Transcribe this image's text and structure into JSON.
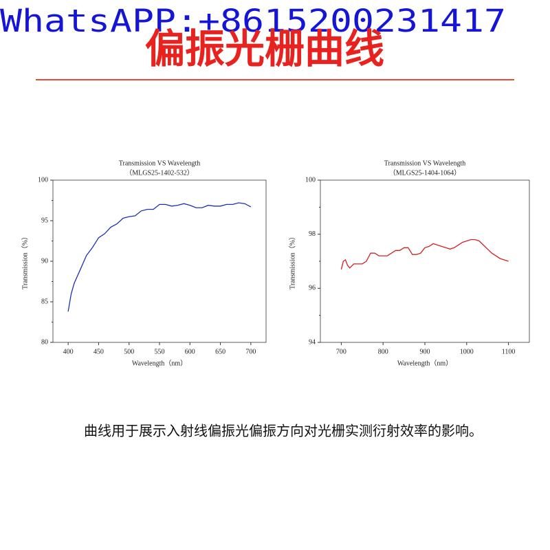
{
  "header": {
    "contact": "WhatsAPP:+8615200231417",
    "title": "偏振光栅曲线"
  },
  "caption": "曲线用于展示入射线偏振光偏振方向对光栅实测衍射效率的影响。",
  "chart_data": [
    {
      "type": "line",
      "title": "Transmission VS Wavelength",
      "subtitle": "（MLGS25-1402-532）",
      "x_label": "Wavelength（nm）",
      "y_label": "Transmission（%）",
      "color": "#1f2fb0",
      "x": [
        400,
        405,
        410,
        420,
        430,
        440,
        450,
        460,
        470,
        480,
        490,
        500,
        510,
        520,
        530,
        540,
        550,
        560,
        570,
        580,
        590,
        600,
        610,
        620,
        630,
        640,
        650,
        660,
        670,
        680,
        690,
        700
      ],
      "values": [
        83.8,
        86,
        87.3,
        89,
        90.7,
        91.7,
        92.9,
        93.4,
        94.2,
        94.6,
        95.3,
        95.5,
        95.6,
        96.2,
        96.4,
        96.4,
        97.0,
        97.0,
        96.8,
        96.9,
        97.1,
        96.9,
        96.6,
        96.6,
        96.9,
        96.8,
        96.8,
        97.0,
        97.0,
        97.2,
        97.1,
        96.7
      ],
      "xlim": [
        375,
        725
      ],
      "xticks": [
        400,
        450,
        500,
        550,
        600,
        650,
        700
      ],
      "ylim": [
        80,
        100
      ],
      "yticks": [
        80,
        85,
        90,
        95,
        100
      ]
    },
    {
      "type": "line",
      "title": "Transmission VS Wavelength",
      "subtitle": "（MLGS25-1404-1064）",
      "x_label": "Wavelength（nm）",
      "y_label": "Transmission（%）",
      "color": "#d42020",
      "x": [
        700,
        705,
        710,
        715,
        720,
        730,
        740,
        750,
        760,
        770,
        780,
        790,
        800,
        810,
        820,
        830,
        840,
        850,
        860,
        870,
        880,
        890,
        900,
        910,
        920,
        930,
        940,
        950,
        960,
        970,
        980,
        990,
        1000,
        1010,
        1020,
        1030,
        1040,
        1050,
        1060,
        1070,
        1080,
        1090,
        1100
      ],
      "values": [
        96.7,
        97.0,
        97.05,
        96.85,
        96.75,
        96.9,
        96.9,
        96.9,
        97.0,
        97.3,
        97.3,
        97.2,
        97.2,
        97.2,
        97.3,
        97.4,
        97.4,
        97.5,
        97.5,
        97.25,
        97.25,
        97.3,
        97.5,
        97.55,
        97.65,
        97.6,
        97.55,
        97.5,
        97.45,
        97.5,
        97.6,
        97.7,
        97.75,
        97.8,
        97.8,
        97.75,
        97.6,
        97.45,
        97.3,
        97.2,
        97.1,
        97.05,
        97.0
      ],
      "xlim": [
        650,
        1150
      ],
      "xticks": [
        700,
        800,
        900,
        1000,
        1100
      ],
      "ylim": [
        94,
        100
      ],
      "yticks": [
        94,
        96,
        98,
        100
      ]
    }
  ]
}
